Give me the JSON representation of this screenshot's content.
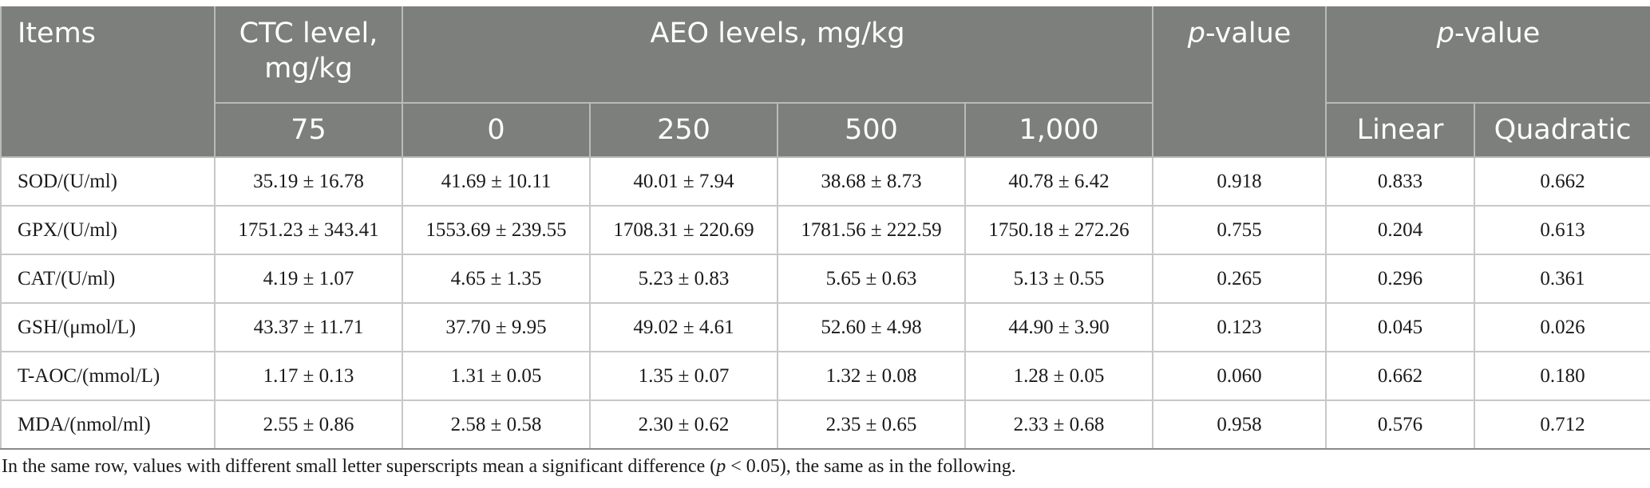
{
  "header": {
    "items": "Items",
    "ctc_level": "CTC level, mg/kg",
    "aeo_levels": "AEO levels, mg/kg",
    "p_italic": "p",
    "p_suffix": "-value",
    "ctc_dose": "75",
    "aeo_doses": [
      "0",
      "250",
      "500",
      "1,000"
    ],
    "linear": "Linear",
    "quadratic": "Quadratic"
  },
  "rows": [
    {
      "item": "SOD/(U/ml)",
      "ctc": "35.19 ± 16.78",
      "aeo": [
        "41.69 ± 10.11",
        "40.01 ± 7.94",
        "38.68 ± 8.73",
        "40.78 ± 6.42"
      ],
      "p": "0.918",
      "linear": "0.833",
      "quadratic": "0.662"
    },
    {
      "item": "GPX/(U/ml)",
      "ctc": "1751.23 ± 343.41",
      "aeo": [
        "1553.69 ± 239.55",
        "1708.31 ± 220.69",
        "1781.56 ± 222.59",
        "1750.18 ± 272.26"
      ],
      "p": "0.755",
      "linear": "0.204",
      "quadratic": "0.613"
    },
    {
      "item": "CAT/(U/ml)",
      "ctc": "4.19 ± 1.07",
      "aeo": [
        "4.65 ± 1.35",
        "5.23 ± 0.83",
        "5.65 ± 0.63",
        "5.13 ± 0.55"
      ],
      "p": "0.265",
      "linear": "0.296",
      "quadratic": "0.361"
    },
    {
      "item": "GSH/(μmol/L)",
      "ctc": "43.37 ± 11.71",
      "aeo": [
        "37.70 ± 9.95",
        "49.02 ± 4.61",
        "52.60 ± 4.98",
        "44.90 ± 3.90"
      ],
      "p": "0.123",
      "linear": "0.045",
      "quadratic": "0.026"
    },
    {
      "item": "T-AOC/(mmol/L)",
      "ctc": "1.17 ± 0.13",
      "aeo": [
        "1.31 ± 0.05",
        "1.35 ± 0.07",
        "1.32 ± 0.08",
        "1.28 ± 0.05"
      ],
      "p": "0.060",
      "linear": "0.662",
      "quadratic": "0.180"
    },
    {
      "item": "MDA/(nmol/ml)",
      "ctc": "2.55 ± 0.86",
      "aeo": [
        "2.58 ± 0.58",
        "2.30 ± 0.62",
        "2.35 ± 0.65",
        "2.33 ± 0.68"
      ],
      "p": "0.958",
      "linear": "0.576",
      "quadratic": "0.712"
    }
  ],
  "footnote": {
    "before": "In the same row, values with different small letter superscripts mean a significant difference (",
    "p": "p",
    "after": " < 0.05), the same as in the following."
  }
}
